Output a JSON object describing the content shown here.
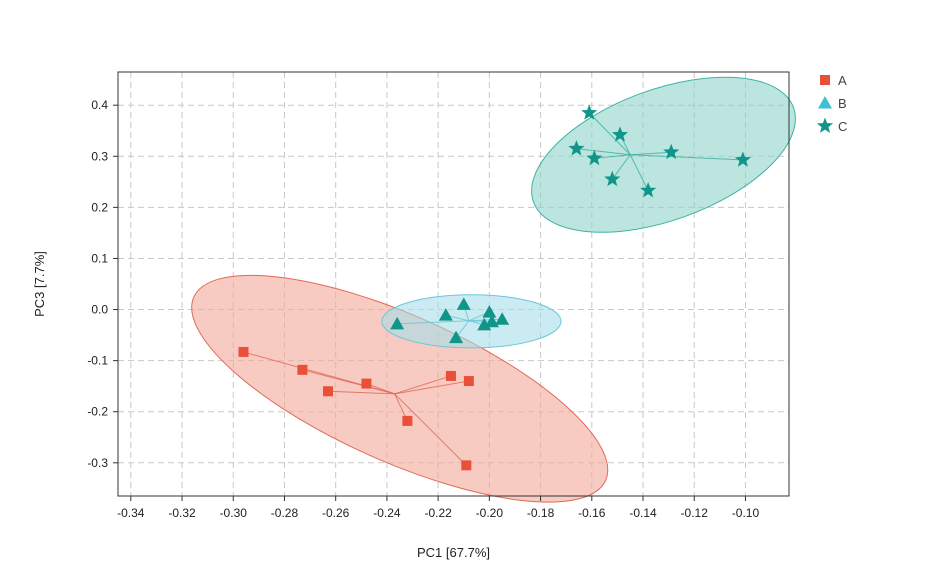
{
  "chart_data": {
    "type": "scatter",
    "xlabel": "PC1 [67.7%]",
    "ylabel": "PC3 [7.7%]",
    "xlim": [
      -0.345,
      -0.083
    ],
    "ylim": [
      -0.365,
      0.465
    ],
    "xticks": [
      -0.34,
      -0.32,
      -0.3,
      -0.28,
      -0.26,
      -0.24,
      -0.22,
      -0.2,
      -0.18,
      -0.16,
      -0.14,
      -0.12,
      -0.1
    ],
    "yticks": [
      -0.3,
      -0.2,
      -0.1,
      0.0,
      0.1,
      0.2,
      0.3,
      0.4
    ],
    "xtick_labels": [
      "-0.34",
      "-0.32",
      "-0.30",
      "-0.28",
      "-0.26",
      "-0.24",
      "-0.22",
      "-0.20",
      "-0.18",
      "-0.16",
      "-0.14",
      "-0.12",
      "-0.10"
    ],
    "ytick_labels": [
      "-0.3",
      "-0.2",
      "-0.1",
      "0.0",
      "0.1",
      "0.2",
      "0.3",
      "0.4"
    ],
    "grid": true,
    "grid_style": "dashed",
    "legend_position": "top-right outside",
    "series": [
      {
        "name": "A",
        "marker": "square",
        "color": "#e8503a",
        "ellipse_fill": "#f4a89a",
        "ellipse_stroke": "#e06a57",
        "centroid": [
          -0.237,
          -0.165
        ],
        "ellipse": {
          "cx": -0.235,
          "cy": -0.155,
          "rx": 0.088,
          "ry": 0.143,
          "angle_deg": 24
        },
        "points": [
          {
            "x": -0.296,
            "y": -0.083
          },
          {
            "x": -0.273,
            "y": -0.118
          },
          {
            "x": -0.263,
            "y": -0.16
          },
          {
            "x": -0.248,
            "y": -0.145
          },
          {
            "x": -0.232,
            "y": -0.218
          },
          {
            "x": -0.215,
            "y": -0.13
          },
          {
            "x": -0.208,
            "y": -0.14
          },
          {
            "x": -0.209,
            "y": -0.305
          }
        ]
      },
      {
        "name": "B",
        "marker": "triangle",
        "color": "#0f9688",
        "legend_color": "#3ec1d3",
        "ellipse_fill": "#a5dde8",
        "ellipse_stroke": "#6cc6d9",
        "centroid": [
          -0.208,
          -0.022
        ],
        "ellipse": {
          "cx": -0.207,
          "cy": -0.023,
          "rx": 0.035,
          "ry": 0.052,
          "angle_deg": 0
        },
        "points": [
          {
            "x": -0.236,
            "y": -0.028
          },
          {
            "x": -0.217,
            "y": -0.011
          },
          {
            "x": -0.21,
            "y": 0.01
          },
          {
            "x": -0.213,
            "y": -0.055
          },
          {
            "x": -0.202,
            "y": -0.03
          },
          {
            "x": -0.2,
            "y": -0.005
          },
          {
            "x": -0.199,
            "y": -0.024
          },
          {
            "x": -0.195,
            "y": -0.019
          }
        ]
      },
      {
        "name": "C",
        "marker": "star",
        "color": "#0f9688",
        "ellipse_fill": "#8fd3c9",
        "ellipse_stroke": "#3fb3a2",
        "centroid": [
          -0.145,
          0.303
        ],
        "ellipse": {
          "cx": -0.132,
          "cy": 0.303,
          "rx": 0.054,
          "ry": 0.128,
          "angle_deg": -20
        },
        "points": [
          {
            "x": -0.161,
            "y": 0.385
          },
          {
            "x": -0.149,
            "y": 0.342
          },
          {
            "x": -0.166,
            "y": 0.315
          },
          {
            "x": -0.159,
            "y": 0.296
          },
          {
            "x": -0.152,
            "y": 0.255
          },
          {
            "x": -0.138,
            "y": 0.233
          },
          {
            "x": -0.129,
            "y": 0.308
          },
          {
            "x": -0.101,
            "y": 0.293
          }
        ]
      }
    ]
  }
}
